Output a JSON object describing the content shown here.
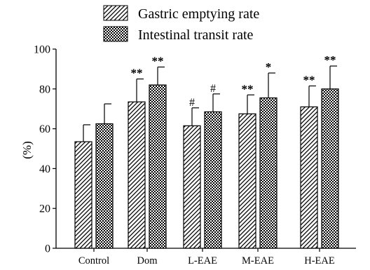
{
  "chart_data": {
    "type": "bar",
    "categories": [
      "Control",
      "Dom",
      "L-EAE",
      "M-EAE",
      "H-EAE"
    ],
    "series": [
      {
        "name": "Gastric emptying rate",
        "values": [
          53.5,
          73.5,
          61.5,
          67.5,
          71
        ],
        "errors": [
          8.5,
          11.5,
          9,
          9.5,
          10.5
        ],
        "markers": [
          "",
          "**",
          "#",
          "**",
          "**"
        ],
        "pattern": "diagonal-hatch"
      },
      {
        "name": "Intestinal transit rate",
        "values": [
          62.5,
          82,
          68.5,
          75.5,
          80
        ],
        "errors": [
          10,
          9,
          9,
          12.5,
          11.5
        ],
        "markers": [
          "",
          "**",
          "#",
          "*",
          "**"
        ],
        "pattern": "checker"
      }
    ],
    "ylabel": "(%)",
    "xlabel": "",
    "ylim": [
      0,
      100
    ],
    "yticks": [
      0,
      20,
      40,
      60,
      80,
      100
    ],
    "grid": false,
    "legend_position": "top-center"
  }
}
